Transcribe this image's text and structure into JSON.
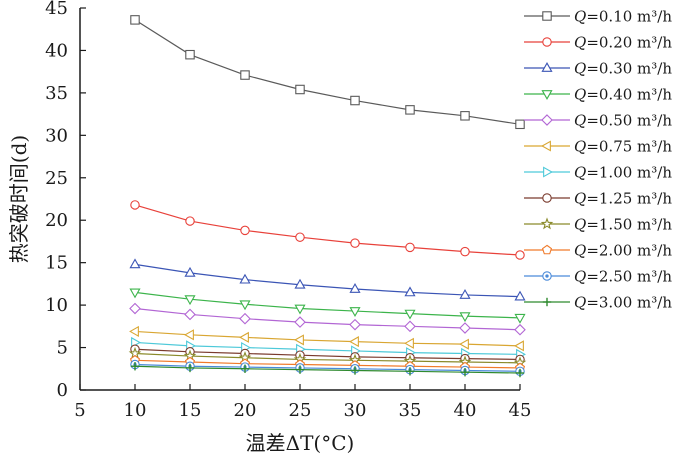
{
  "chart_data": {
    "type": "line",
    "xlabel": "温差ΔT(°C)",
    "ylabel": "热突破时间(d)",
    "xlim": [
      5,
      45
    ],
    "ylim": [
      0,
      45
    ],
    "x_ticks": [
      5,
      10,
      15,
      20,
      25,
      30,
      35,
      40,
      45
    ],
    "y_ticks": [
      0,
      5,
      10,
      15,
      20,
      25,
      30,
      35,
      40,
      45
    ],
    "grid": false,
    "legend_position": "right",
    "x": [
      10,
      15,
      20,
      25,
      30,
      35,
      40,
      45
    ],
    "series": [
      {
        "name": "Q=0.10 m³/h",
        "color": "#5a5a5a",
        "marker": "square",
        "values": [
          43.6,
          39.5,
          37.1,
          35.4,
          34.1,
          33.0,
          32.3,
          31.3
        ]
      },
      {
        "name": "Q=0.20 m³/h",
        "color": "#e8413a",
        "marker": "circle",
        "values": [
          21.8,
          19.9,
          18.8,
          18.0,
          17.3,
          16.8,
          16.3,
          15.9
        ]
      },
      {
        "name": "Q=0.30 m³/h",
        "color": "#3b55b5",
        "marker": "triangle-up",
        "values": [
          14.8,
          13.8,
          13.0,
          12.4,
          11.9,
          11.5,
          11.2,
          11.0
        ]
      },
      {
        "name": "Q=0.40 m³/h",
        "color": "#3cb44b",
        "marker": "triangle-down",
        "values": [
          11.5,
          10.7,
          10.1,
          9.6,
          9.3,
          9.0,
          8.7,
          8.5
        ]
      },
      {
        "name": "Q=0.50 m³/h",
        "color": "#b266d4",
        "marker": "diamond",
        "values": [
          9.6,
          8.9,
          8.4,
          8.0,
          7.7,
          7.5,
          7.3,
          7.1
        ]
      },
      {
        "name": "Q=0.75 m³/h",
        "color": "#d9a632",
        "marker": "triangle-left",
        "values": [
          6.9,
          6.5,
          6.2,
          5.9,
          5.7,
          5.5,
          5.4,
          5.2
        ]
      },
      {
        "name": "Q=1.00 m³/h",
        "color": "#4dc9d9",
        "marker": "triangle-right",
        "values": [
          5.6,
          5.2,
          5.0,
          4.8,
          4.6,
          4.4,
          4.3,
          4.2
        ]
      },
      {
        "name": "Q=1.25 m³/h",
        "color": "#7a3b2e",
        "marker": "circle",
        "values": [
          4.8,
          4.5,
          4.3,
          4.1,
          3.9,
          3.8,
          3.7,
          3.6
        ]
      },
      {
        "name": "Q=1.50 m³/h",
        "color": "#8a8a2a",
        "marker": "star",
        "values": [
          4.3,
          4.0,
          3.8,
          3.6,
          3.5,
          3.4,
          3.3,
          3.2
        ]
      },
      {
        "name": "Q=2.00 m³/h",
        "color": "#f07a2a",
        "marker": "pentagon",
        "values": [
          3.5,
          3.3,
          3.1,
          3.0,
          2.9,
          2.8,
          2.7,
          2.6
        ]
      },
      {
        "name": "Q=2.50 m³/h",
        "color": "#4a8ad9",
        "marker": "circle-dot",
        "values": [
          3.0,
          2.8,
          2.7,
          2.6,
          2.5,
          2.4,
          2.3,
          2.2
        ]
      },
      {
        "name": "Q=3.00 m³/h",
        "color": "#2f8a2f",
        "marker": "plus",
        "values": [
          2.8,
          2.6,
          2.5,
          2.4,
          2.3,
          2.2,
          2.1,
          2.0
        ]
      }
    ]
  }
}
